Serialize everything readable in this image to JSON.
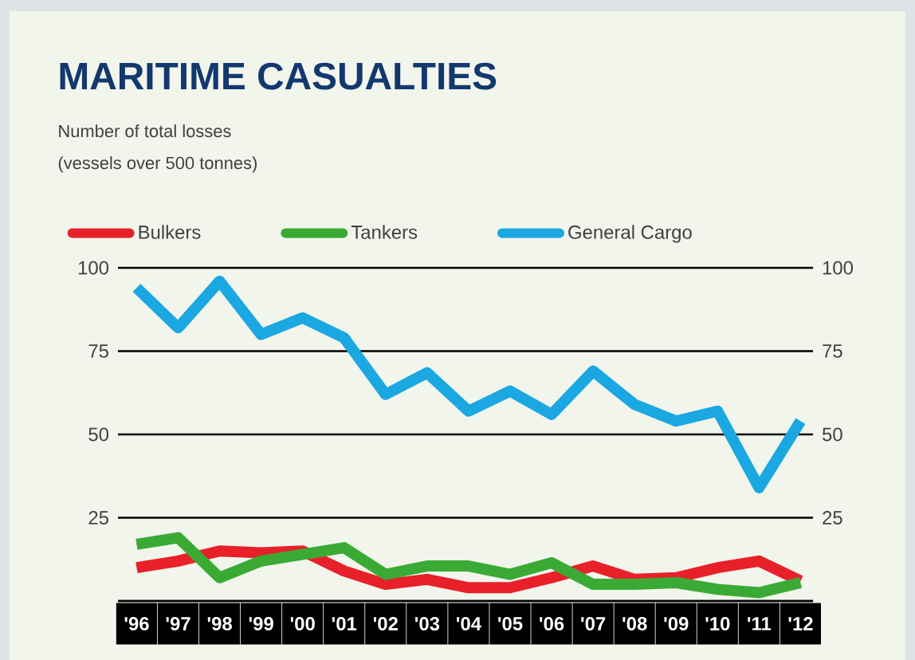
{
  "chart_data": {
    "type": "line",
    "title": "MARITIME CASUALTIES",
    "subtitle": "Number of total losses",
    "annotations": [
      "(vessels over 500 tonnes)"
    ],
    "categories": [
      "'96",
      "'97",
      "'98",
      "'99",
      "'00",
      "'01",
      "'02",
      "'03",
      "'04",
      "'05",
      "'06",
      "'07",
      "'08",
      "'09",
      "'10",
      "'11",
      "'12"
    ],
    "series": [
      {
        "name": "Bulkers",
        "color": "#e8202a",
        "values": [
          10,
          12,
          15,
          14.5,
          15,
          9,
          5,
          6.5,
          4,
          4,
          7,
          10.5,
          6.5,
          7,
          10,
          12,
          6
        ]
      },
      {
        "name": "Tankers",
        "color": "#3aaa35",
        "values": [
          17,
          19,
          7,
          12,
          14,
          16,
          8,
          10.5,
          10.5,
          8,
          11.5,
          5,
          5,
          5.5,
          3.5,
          2.5,
          5.5
        ]
      },
      {
        "name": "General Cargo",
        "color": "#1ba7e1",
        "values": [
          94,
          82,
          96,
          80,
          85,
          79,
          62,
          68.5,
          57,
          63,
          56,
          69,
          59,
          54,
          57,
          34,
          54
        ]
      }
    ],
    "ylim": [
      0,
      100
    ],
    "yticks": [
      25,
      50,
      75,
      100
    ],
    "y2lim": [
      0,
      100
    ],
    "y2ticks": [
      25,
      50,
      75,
      100
    ],
    "grid": "y",
    "legend": "top"
  }
}
